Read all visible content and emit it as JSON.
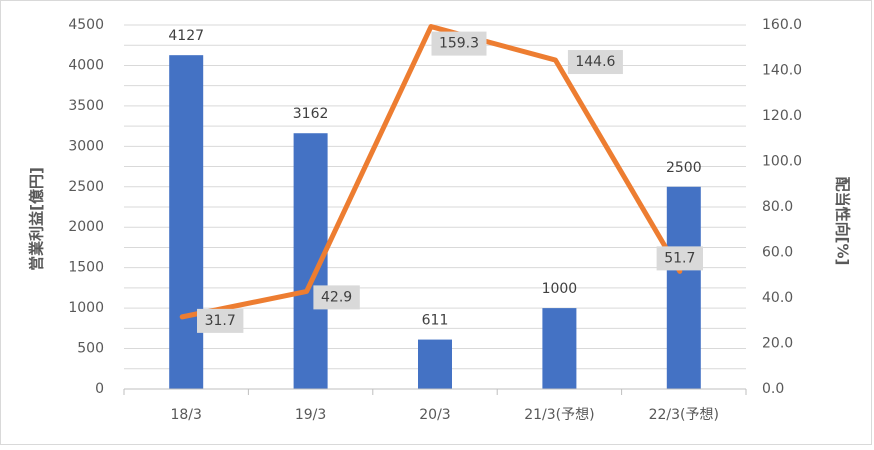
{
  "chart_data": {
    "type": "bar",
    "title": "",
    "xlabel": "",
    "ylabel": "営業利益[億円]",
    "y2label": "配当性向[%]",
    "categories": [
      "18/3",
      "19/3",
      "20/3",
      "21/3(予想)",
      "22/3(予想)"
    ],
    "ylim": [
      0,
      4500
    ],
    "y2lim": [
      0,
      160
    ],
    "yticks": [
      "0",
      "500",
      "1000",
      "1500",
      "2000",
      "2500",
      "3000",
      "3500",
      "4000",
      "4500"
    ],
    "y2ticks": [
      "0.0",
      "20.0",
      "40.0",
      "60.0",
      "80.0",
      "100.0",
      "120.0",
      "140.0",
      "160.0"
    ],
    "grid": true,
    "legend": "none",
    "series": [
      {
        "type": "bar",
        "axis": "left",
        "color": "#4472c4",
        "values": [
          4127,
          3162,
          611,
          1000,
          2500
        ],
        "labels": [
          "4127",
          "3162",
          "611",
          "1000",
          "2500"
        ]
      },
      {
        "type": "line",
        "axis": "right",
        "color": "#ed7d31",
        "values": [
          31.7,
          42.9,
          159.3,
          144.6,
          51.7
        ],
        "labels": [
          "31.7",
          "42.9",
          "159.3",
          "144.6",
          "51.7"
        ]
      }
    ]
  }
}
